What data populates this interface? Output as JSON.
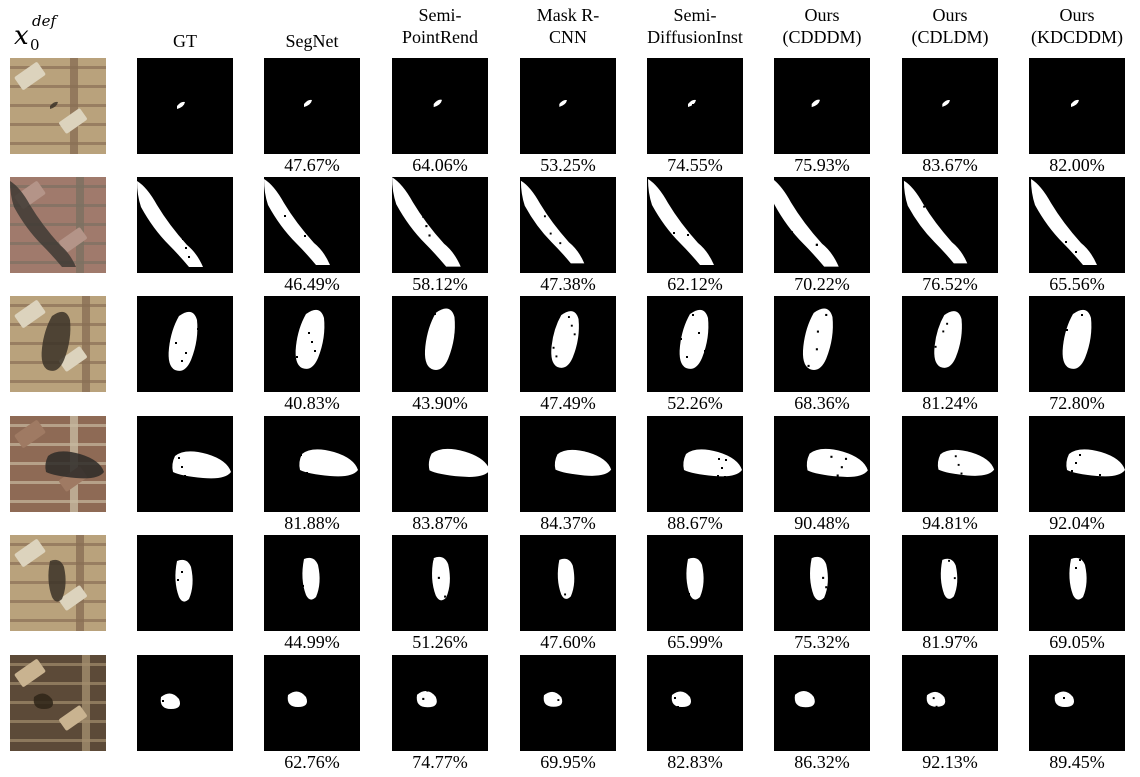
{
  "header": {
    "input_symbol": {
      "base": "x",
      "sub": "0",
      "sup": "def"
    },
    "columns": [
      {
        "lines": [
          "GT"
        ]
      },
      {
        "lines": [
          "SegNet"
        ]
      },
      {
        "lines": [
          "Semi-",
          "PointRend"
        ]
      },
      {
        "lines": [
          "Mask R-",
          "CNN"
        ]
      },
      {
        "lines": [
          "Semi-",
          "DiffusionInst"
        ]
      },
      {
        "lines": [
          "Ours",
          "(CDDDM)"
        ]
      },
      {
        "lines": [
          "Ours",
          "(CDLDM)"
        ]
      },
      {
        "lines": [
          "Ours",
          "(KDCDDM)"
        ]
      }
    ]
  },
  "rows": [
    {
      "input_palette": "chip-tan",
      "scores": [
        "47.67%",
        "64.06%",
        "53.25%",
        "74.55%",
        "75.93%",
        "83.67%",
        "82.00%"
      ]
    },
    {
      "input_palette": "chip-pink",
      "scores": [
        "46.49%",
        "58.12%",
        "47.38%",
        "62.12%",
        "70.22%",
        "76.52%",
        "65.56%"
      ]
    },
    {
      "input_palette": "chip-tan",
      "scores": [
        "40.83%",
        "43.90%",
        "47.49%",
        "52.26%",
        "68.36%",
        "81.24%",
        "72.80%"
      ]
    },
    {
      "input_palette": "chip-brown",
      "scores": [
        "81.88%",
        "83.87%",
        "84.37%",
        "88.67%",
        "90.48%",
        "94.81%",
        "92.04%"
      ]
    },
    {
      "input_palette": "chip-tan",
      "scores": [
        "44.99%",
        "51.26%",
        "47.60%",
        "65.99%",
        "75.32%",
        "81.97%",
        "69.05%"
      ]
    },
    {
      "input_palette": "chip-dark",
      "scores": [
        "62.76%",
        "74.77%",
        "69.95%",
        "82.83%",
        "86.32%",
        "92.13%",
        "89.45%"
      ]
    }
  ]
}
